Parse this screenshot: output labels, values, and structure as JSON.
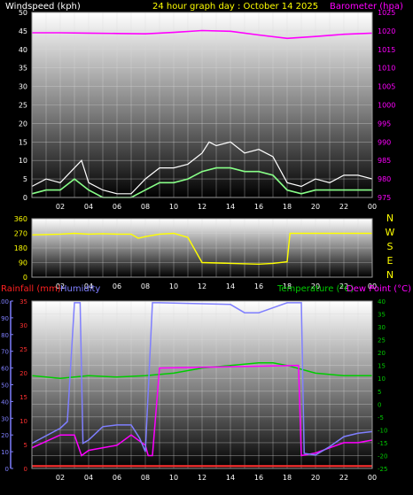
{
  "chart_data": [
    {
      "type": "line",
      "header": {
        "left": "Windspeed (kph)",
        "center": "24 hour graph day : October 14 2025",
        "right": "Barometer (hpa)"
      },
      "x_ticks": [
        "02",
        "04",
        "06",
        "08",
        "10",
        "12",
        "14",
        "16",
        "18",
        "20",
        "22",
        "00"
      ],
      "y_left": {
        "ticks": [
          "0",
          "5",
          "10",
          "15",
          "20",
          "25",
          "30",
          "35",
          "40",
          "45",
          "50"
        ],
        "range": [
          0,
          50
        ]
      },
      "y_right": {
        "ticks": [
          "975",
          "980",
          "985",
          "990",
          "995",
          "1000",
          "1005",
          "1010",
          "1015",
          "1020",
          "1025"
        ],
        "range": [
          975,
          1025
        ]
      },
      "grid": true,
      "series": [
        {
          "role": "barometer",
          "axis": "right",
          "color": "#ff00ff",
          "x": [
            0,
            2,
            4,
            6,
            8,
            10,
            12,
            14,
            16,
            18,
            20,
            22,
            24
          ],
          "values": [
            1019.5,
            1019.5,
            1019.4,
            1019.3,
            1019.2,
            1019.6,
            1020.1,
            1019.9,
            1018.9,
            1018.0,
            1018.5,
            1019.1,
            1019.4
          ]
        },
        {
          "role": "gust",
          "axis": "left",
          "color": "#ffffff",
          "x": [
            0,
            1,
            2,
            3,
            3.5,
            4,
            5,
            6,
            7,
            8,
            9,
            10,
            11,
            12,
            12.5,
            13,
            14,
            15,
            16,
            17,
            18,
            19,
            20,
            21,
            22,
            23,
            24
          ],
          "values": [
            3,
            5,
            4,
            8,
            10,
            4,
            2,
            1,
            1,
            5,
            8,
            8,
            9,
            12,
            15,
            14,
            15,
            12,
            13,
            11,
            4,
            3,
            5,
            4,
            6,
            6,
            5
          ]
        },
        {
          "role": "average",
          "axis": "left",
          "color": "#88ff88",
          "x": [
            0,
            1,
            2,
            3,
            4,
            5,
            6,
            7,
            8,
            9,
            10,
            11,
            12,
            13,
            14,
            15,
            16,
            17,
            18,
            19,
            20,
            21,
            22,
            23,
            24
          ],
          "values": [
            1,
            2,
            2,
            5,
            2,
            0,
            0,
            0,
            2,
            4,
            4,
            5,
            7,
            8,
            8,
            7,
            7,
            6,
            2,
            1,
            2,
            2,
            2,
            2,
            2
          ]
        }
      ]
    },
    {
      "type": "line",
      "x_ticks": [
        "02",
        "04",
        "06",
        "08",
        "10",
        "12",
        "14",
        "16",
        "18",
        "20",
        "22",
        "00"
      ],
      "y_left": {
        "ticks": [
          "0",
          "90",
          "180",
          "270",
          "360"
        ],
        "range": [
          0,
          360
        ]
      },
      "y_right": {
        "ticks": [
          "N",
          "W",
          "S",
          "E",
          "N"
        ]
      },
      "grid": true,
      "series": [
        {
          "role": "wind-direction",
          "color": "#ffff00",
          "x": [
            0,
            2,
            3,
            4,
            5,
            6,
            7,
            7.5,
            8,
            9,
            10,
            11,
            12,
            14,
            16,
            17,
            18,
            18.2,
            20,
            22,
            24
          ],
          "values": [
            260,
            265,
            270,
            265,
            268,
            265,
            265,
            240,
            250,
            265,
            270,
            245,
            90,
            85,
            80,
            85,
            95,
            270,
            270,
            270,
            270
          ]
        }
      ]
    },
    {
      "type": "line",
      "header": {
        "rain": "Rainfall (mm)",
        "humidity": "Humidity",
        "temperature": "Temperature (°C)",
        "dew_point": "Dew Point (°C)"
      },
      "x_ticks": [
        "02",
        "04",
        "06",
        "08",
        "10",
        "12",
        "14",
        "16",
        "18",
        "20",
        "22",
        "00"
      ],
      "y_humidity": {
        "ticks": [
          "0",
          "10",
          "20",
          "30",
          "40",
          "50",
          "60",
          "70",
          "80",
          "90",
          "100"
        ],
        "range": [
          0,
          100
        ]
      },
      "y_rain": {
        "ticks": [
          "0",
          "5",
          "10",
          "15",
          "20",
          "25",
          "30",
          "35"
        ],
        "range": [
          0,
          35
        ]
      },
      "y_temp": {
        "ticks": [
          "-25",
          "-20",
          "-15",
          "-10",
          "-5",
          "0",
          "5",
          "10",
          "15",
          "20",
          "25",
          "30",
          "35",
          "40"
        ],
        "range": [
          -25,
          40
        ]
      },
      "grid": true,
      "series": [
        {
          "role": "temperature",
          "axis": "temp",
          "color": "#00cc00",
          "x": [
            0,
            2,
            4,
            6,
            8,
            10,
            12,
            14,
            16,
            17,
            18,
            20,
            22,
            24
          ],
          "values": [
            11,
            10,
            11,
            10.5,
            11,
            12,
            14,
            15,
            16,
            16,
            15,
            12,
            11,
            11
          ]
        },
        {
          "role": "dew-point",
          "axis": "temp",
          "color": "#ff00ff",
          "x": [
            0,
            2,
            3,
            3.5,
            4,
            6,
            7,
            8,
            8.2,
            8.5,
            9,
            18.8,
            19,
            20,
            21,
            22,
            23,
            24
          ],
          "values": [
            -17,
            -12,
            -12,
            -20,
            -18,
            -16,
            -12,
            -16,
            -20,
            -20,
            14,
            15,
            -20,
            -19,
            -17,
            -15,
            -15,
            -14
          ]
        },
        {
          "role": "humidity",
          "axis": "humidity",
          "color": "#7f7fff",
          "x": [
            0,
            2,
            2.5,
            3,
            3.4,
            3.6,
            4,
            5,
            6,
            7,
            7.6,
            8,
            8.5,
            9,
            14,
            15,
            16,
            17,
            18,
            19,
            19.2,
            20,
            21,
            22,
            23,
            24
          ],
          "values": [
            15,
            24,
            28,
            99,
            99,
            15,
            17,
            25,
            26,
            26,
            18,
            10,
            99,
            99,
            98,
            93,
            93,
            96,
            99,
            99,
            9,
            8,
            13,
            19,
            21,
            22
          ]
        },
        {
          "role": "rain",
          "axis": "rain",
          "color": "#ff3030",
          "x": [
            0,
            24
          ],
          "values": [
            0.5,
            0.5
          ]
        }
      ]
    }
  ]
}
